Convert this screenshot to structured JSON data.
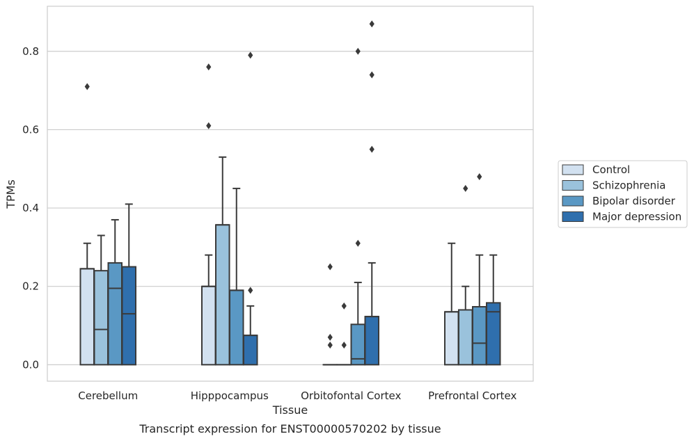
{
  "chart_data": {
    "type": "boxplot",
    "xlabel": "Tissue",
    "ylabel": "TPMs",
    "caption": "Transcript expression for ENST00000570202 by tissue",
    "ylim": [
      -0.042,
      0.915
    ],
    "yticks": [
      0.0,
      0.2,
      0.4,
      0.6,
      0.8
    ],
    "ytick_labels": [
      "0.0",
      "0.2",
      "0.4",
      "0.6",
      "0.8"
    ],
    "grid": "horizontal",
    "legend_position": "right",
    "categories": [
      "Cerebellum",
      "Hipppocampus",
      "Orbitofontal Cortex",
      "Prefrontal Cortex"
    ],
    "series": [
      {
        "name": "Control",
        "color": "#d2e1f0",
        "boxes": [
          {
            "q1": 0.0,
            "median": 0.245,
            "q3": 0.245,
            "whisker_low": 0.0,
            "whisker_high": 0.31,
            "outliers": [
              0.71
            ]
          },
          {
            "q1": 0.0,
            "median": 0.2,
            "q3": 0.2,
            "whisker_low": 0.0,
            "whisker_high": 0.28,
            "outliers": [
              0.61,
              0.76
            ]
          },
          {
            "q1": 0.0,
            "median": 0.0,
            "q3": 0.0,
            "whisker_low": 0.0,
            "whisker_high": 0.0,
            "outliers": [
              0.05,
              0.07,
              0.25
            ]
          },
          {
            "q1": 0.0,
            "median": 0.135,
            "q3": 0.135,
            "whisker_low": 0.0,
            "whisker_high": 0.31,
            "outliers": []
          }
        ]
      },
      {
        "name": "Schizophrenia",
        "color": "#9ac2dc",
        "boxes": [
          {
            "q1": 0.0,
            "median": 0.09,
            "q3": 0.24,
            "whisker_low": 0.0,
            "whisker_high": 0.33,
            "outliers": []
          },
          {
            "q1": 0.0,
            "median": 0.357,
            "q3": 0.357,
            "whisker_low": 0.0,
            "whisker_high": 0.53,
            "outliers": []
          },
          {
            "q1": 0.0,
            "median": 0.0,
            "q3": 0.0,
            "whisker_low": 0.0,
            "whisker_high": 0.0,
            "outliers": [
              0.05,
              0.15
            ]
          },
          {
            "q1": 0.0,
            "median": 0.14,
            "q3": 0.14,
            "whisker_low": 0.0,
            "whisker_high": 0.2,
            "outliers": [
              0.45
            ]
          }
        ]
      },
      {
        "name": "Bipolar disorder",
        "color": "#5a98c4",
        "boxes": [
          {
            "q1": 0.0,
            "median": 0.195,
            "q3": 0.26,
            "whisker_low": 0.0,
            "whisker_high": 0.37,
            "outliers": []
          },
          {
            "q1": 0.0,
            "median": 0.19,
            "q3": 0.19,
            "whisker_low": 0.0,
            "whisker_high": 0.45,
            "outliers": []
          },
          {
            "q1": 0.0,
            "median": 0.015,
            "q3": 0.103,
            "whisker_low": 0.0,
            "whisker_high": 0.21,
            "outliers": [
              0.31,
              0.8
            ]
          },
          {
            "q1": 0.0,
            "median": 0.055,
            "q3": 0.148,
            "whisker_low": 0.0,
            "whisker_high": 0.28,
            "outliers": [
              0.48
            ]
          }
        ]
      },
      {
        "name": "Major depression",
        "color": "#2f6fad",
        "boxes": [
          {
            "q1": 0.0,
            "median": 0.13,
            "q3": 0.25,
            "whisker_low": 0.0,
            "whisker_high": 0.41,
            "outliers": []
          },
          {
            "q1": 0.0,
            "median": 0.075,
            "q3": 0.075,
            "whisker_low": 0.0,
            "whisker_high": 0.15,
            "outliers": [
              0.19,
              0.79
            ]
          },
          {
            "q1": 0.0,
            "median": 0.123,
            "q3": 0.123,
            "whisker_low": 0.0,
            "whisker_high": 0.26,
            "outliers": [
              0.55,
              0.74,
              0.87
            ]
          },
          {
            "q1": 0.0,
            "median": 0.135,
            "q3": 0.158,
            "whisker_low": 0.0,
            "whisker_high": 0.28,
            "outliers": []
          }
        ]
      }
    ]
  }
}
